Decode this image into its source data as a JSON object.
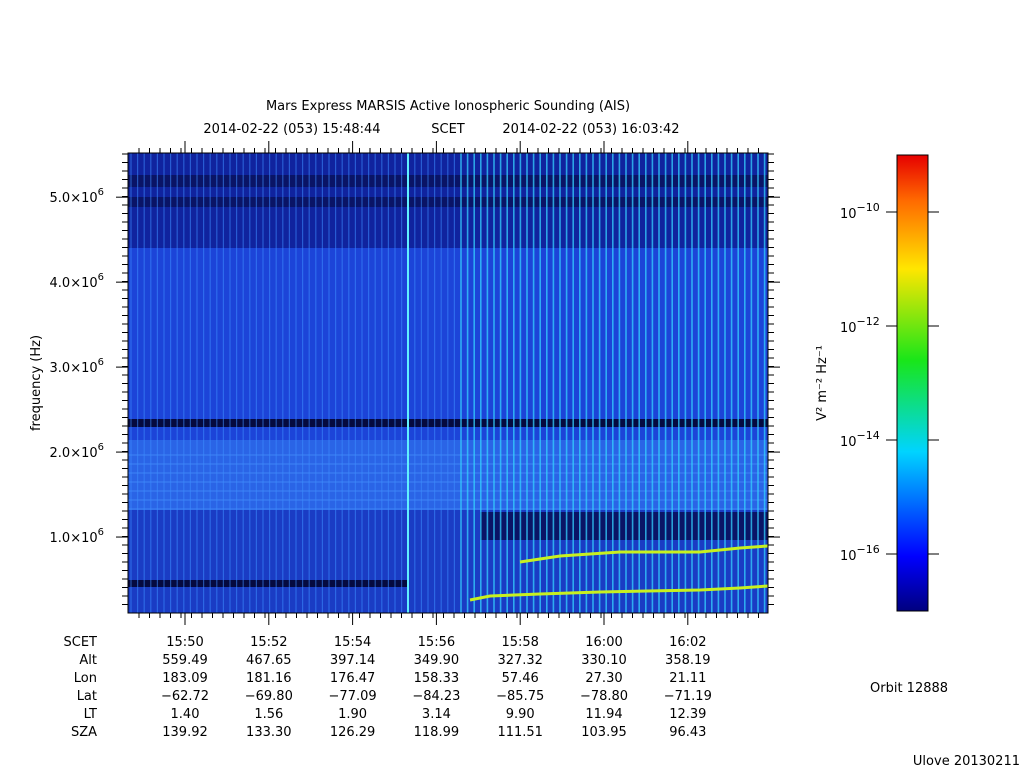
{
  "chart_data": {
    "type": "spectrogram",
    "title": "Mars Express MARSIS Active Ionospheric Sounding (AIS)",
    "subtitle": {
      "start": "2014-02-22 (053) 15:48:44",
      "label": "SCET",
      "end": "2014-02-22 (053) 16:03:42"
    },
    "y_label": "frequency (Hz)",
    "ylim": [
      106000,
      5520000
    ],
    "yticks": [
      {
        "value": 1000000,
        "label": "1.0×10",
        "exponent": "6"
      },
      {
        "value": 2000000,
        "label": "2.0×10",
        "exponent": "6"
      },
      {
        "value": 3000000,
        "label": "3.0×10",
        "exponent": "6"
      },
      {
        "value": 4000000,
        "label": "4.0×10",
        "exponent": "6"
      },
      {
        "value": 5000000,
        "label": "5.0×10",
        "exponent": "6"
      }
    ],
    "colorbar": {
      "label": "V² m⁻² Hz⁻¹",
      "log": true,
      "lim": [
        1e-17,
        1e-09
      ],
      "ticks": [
        {
          "value": 1e-10,
          "label": "10",
          "exponent": "−10"
        },
        {
          "value": 1e-12,
          "label": "10",
          "exponent": "−12"
        },
        {
          "value": 1e-14,
          "label": "10",
          "exponent": "−14"
        },
        {
          "value": 1e-16,
          "label": "10",
          "exponent": "−16"
        }
      ]
    },
    "ephemeris": {
      "rows": [
        {
          "name": "SCET",
          "values": [
            "15:50",
            "15:52",
            "15:54",
            "15:56",
            "15:58",
            "16:00",
            "16:02"
          ]
        },
        {
          "name": "Alt",
          "values": [
            "559.49",
            "467.65",
            "397.14",
            "349.90",
            "327.32",
            "330.10",
            "358.19"
          ]
        },
        {
          "name": "Lon",
          "values": [
            "183.09",
            "181.16",
            "176.47",
            "158.33",
            "57.46",
            "27.30",
            "21.11"
          ]
        },
        {
          "name": "Lat",
          "values": [
            "−62.72",
            "−69.80",
            "−77.09",
            "−84.23",
            "−85.75",
            "−78.80",
            "−71.19"
          ]
        },
        {
          "name": "LT",
          "values": [
            "1.40",
            "1.56",
            "1.90",
            "3.14",
            "9.90",
            "11.94",
            "12.39"
          ]
        },
        {
          "name": "SZA",
          "values": [
            "139.92",
            "133.30",
            "126.29",
            "118.99",
            "111.51",
            "103.95",
            "96.43"
          ]
        }
      ]
    },
    "orbit": "Orbit 12888",
    "footer": "Ulove 20130211"
  }
}
